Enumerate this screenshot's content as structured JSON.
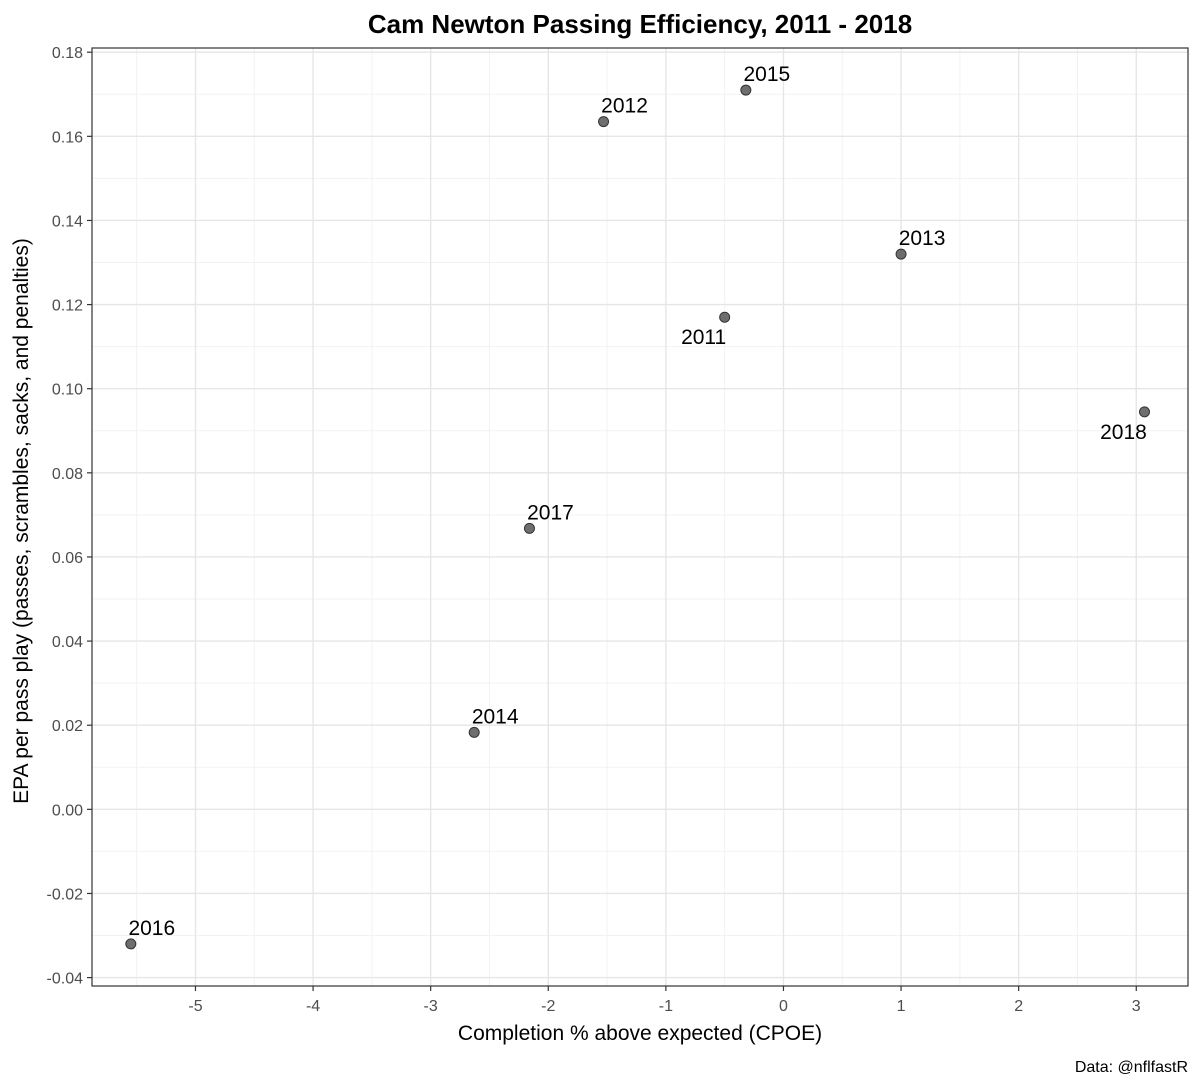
{
  "chart_data": {
    "type": "scatter",
    "title": "Cam Newton Passing Efficiency, 2011 - 2018",
    "xlabel": "Completion % above expected (CPOE)",
    "ylabel": "EPA per pass play (passes, scrambles, sacks, and penalties)",
    "caption": "Data: @nflfastR",
    "xlim": [
      -5.88,
      3.44
    ],
    "ylim": [
      -0.042,
      0.181
    ],
    "x_ticks": [
      "-5",
      "-4",
      "-3",
      "-2",
      "-1",
      "0",
      "1",
      "2",
      "3"
    ],
    "y_ticks": [
      "-0.04",
      "-0.02",
      "0.00",
      "0.02",
      "0.04",
      "0.06",
      "0.08",
      "0.10",
      "0.12",
      "0.14",
      "0.16",
      "0.18"
    ],
    "grid": true,
    "point_color": "#555555",
    "points": [
      {
        "label": "2011",
        "x": -0.5,
        "y": 0.117
      },
      {
        "label": "2012",
        "x": -1.53,
        "y": 0.1635
      },
      {
        "label": "2013",
        "x": 1.0,
        "y": 0.132
      },
      {
        "label": "2014",
        "x": -2.63,
        "y": 0.0183
      },
      {
        "label": "2015",
        "x": -0.32,
        "y": 0.171
      },
      {
        "label": "2016",
        "x": -5.55,
        "y": -0.032
      },
      {
        "label": "2017",
        "x": -2.16,
        "y": 0.0668
      },
      {
        "label": "2018",
        "x": 3.07,
        "y": 0.0945
      }
    ]
  }
}
